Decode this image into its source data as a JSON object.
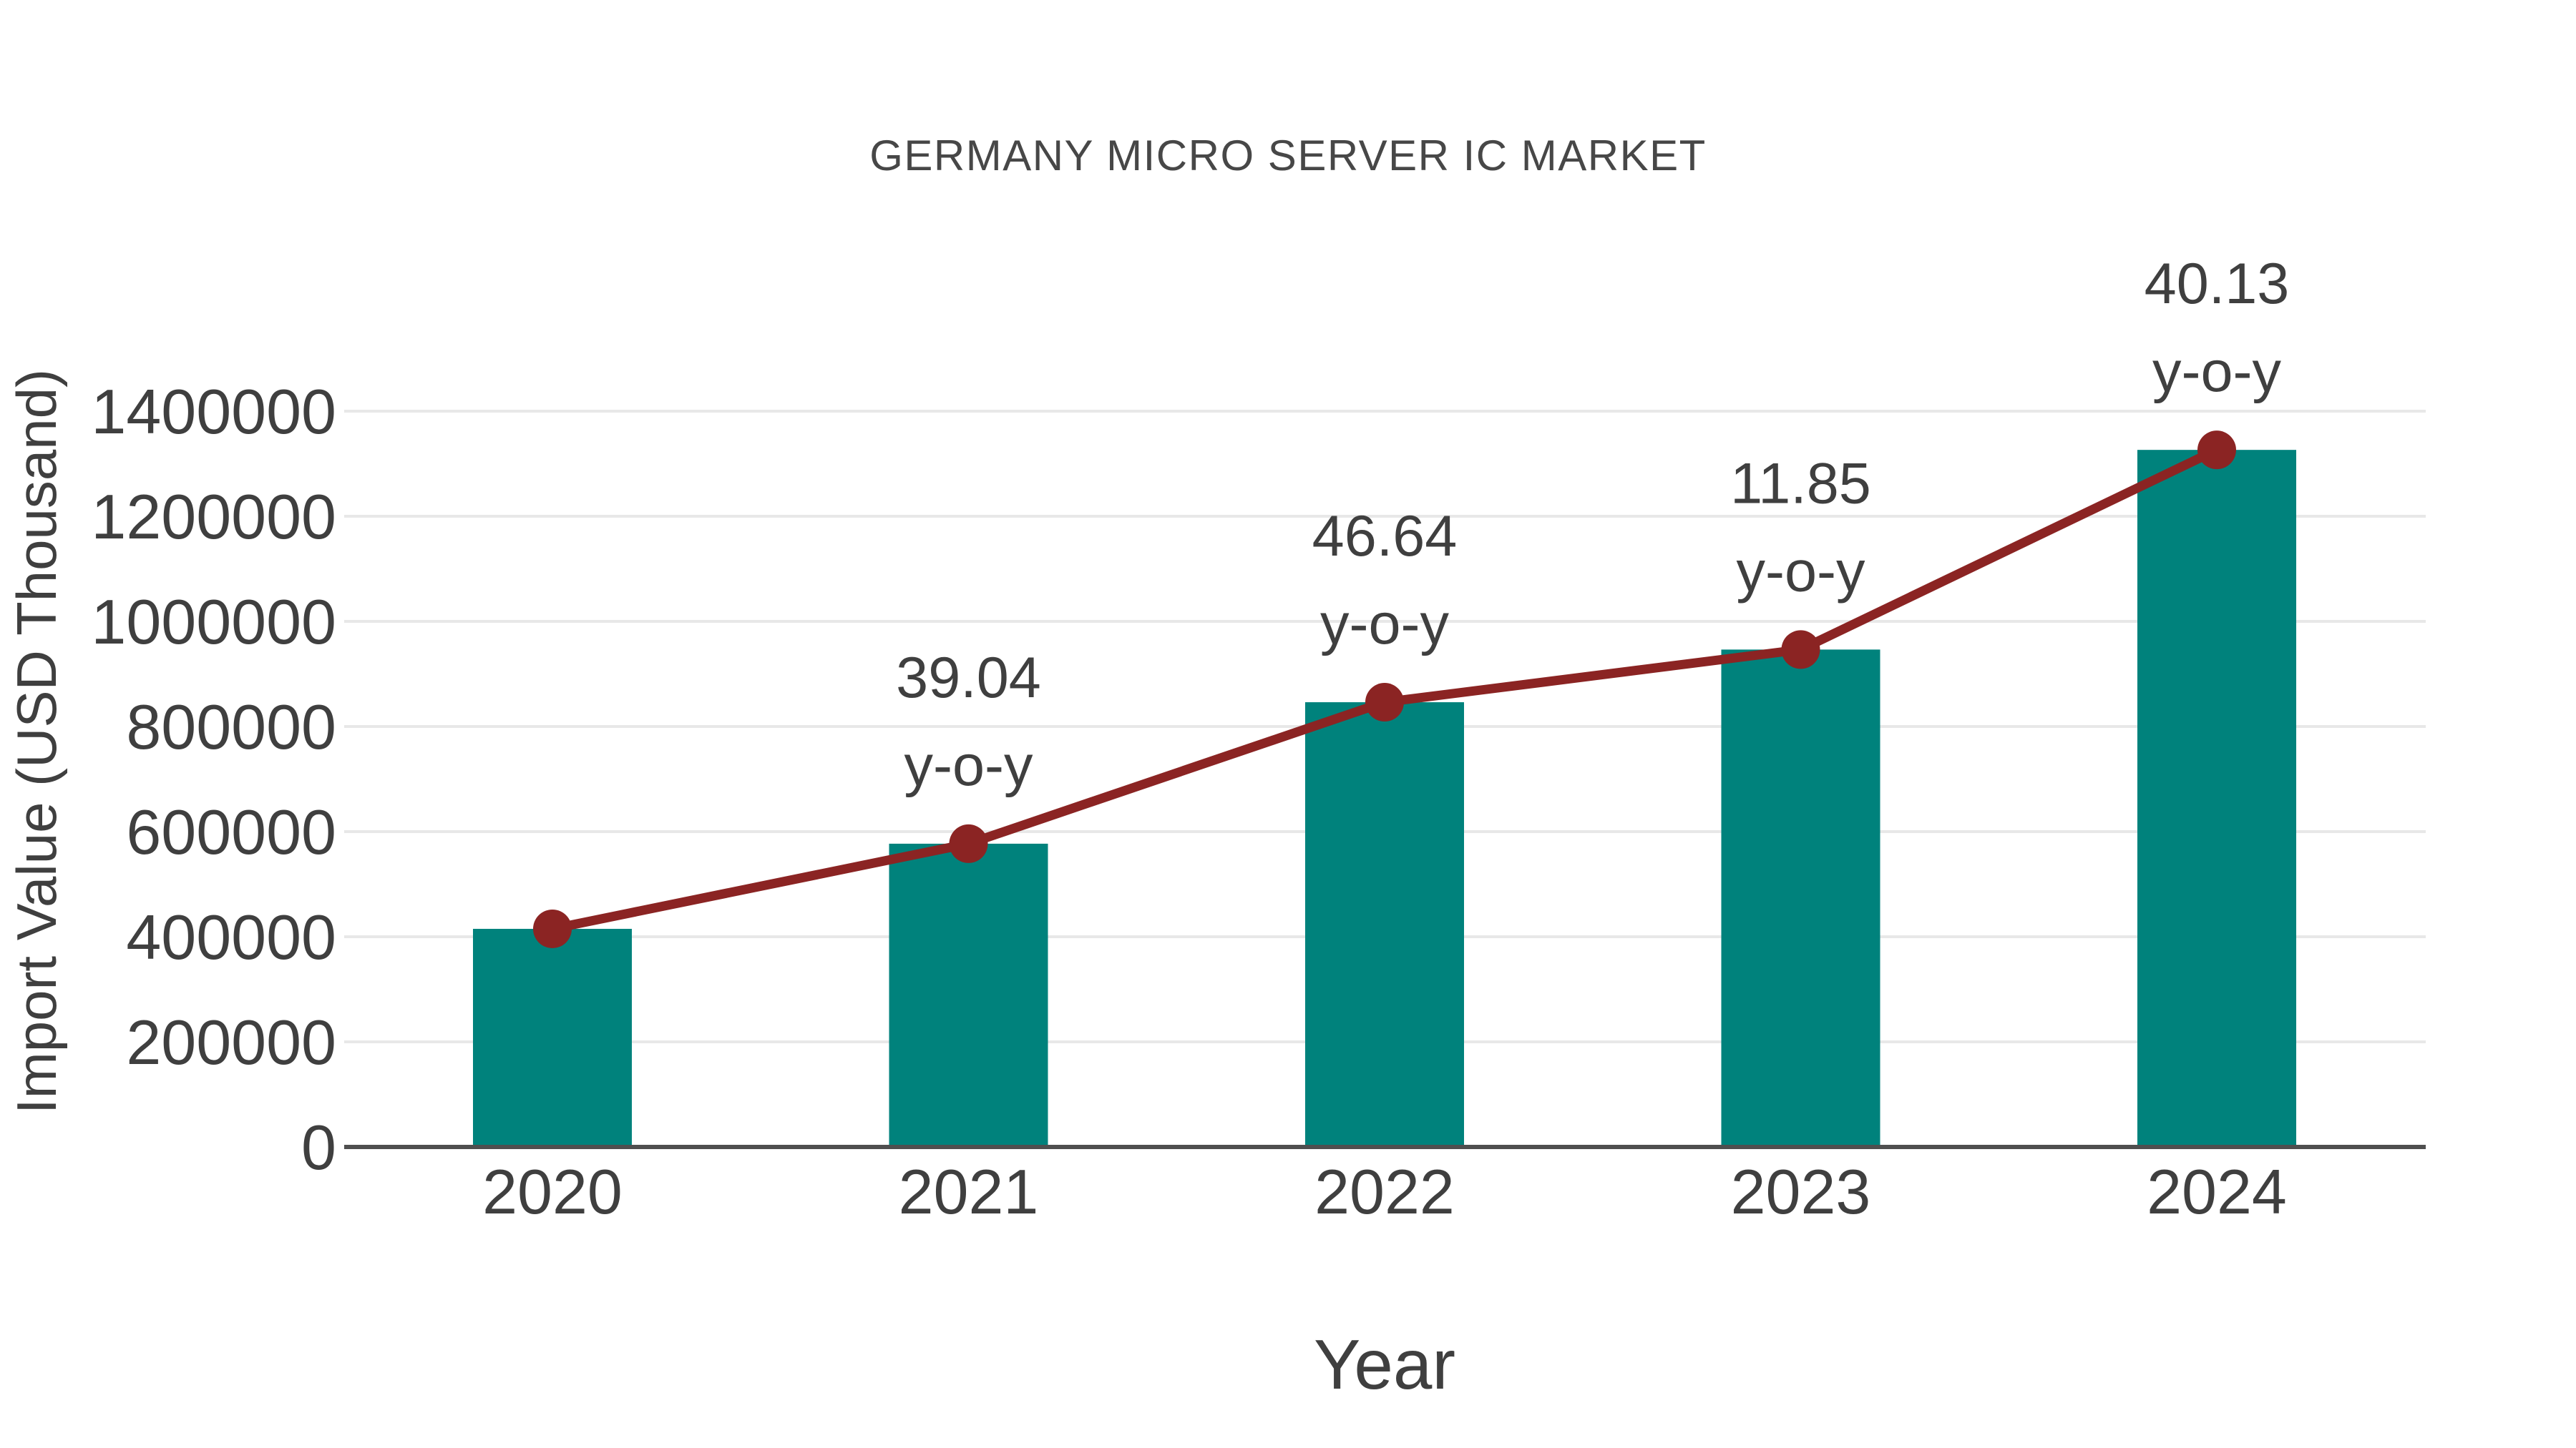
{
  "page": {
    "background": "#ffffff"
  },
  "chart_data": {
    "type": "bar",
    "subtype": "bar-with-line-overlay",
    "title": "GERMANY MICRO SERVER IC MARKET",
    "xlabel": "Year",
    "ylabel": "Import Value (USD Thousand)",
    "categories": [
      "2020",
      "2021",
      "2022",
      "2023",
      "2024"
    ],
    "series": [
      {
        "name": "Import Value bars",
        "type": "bar",
        "color": "#00827C",
        "values": [
          415000,
          577000,
          846200,
          946400,
          1326300
        ]
      },
      {
        "name": "Trend line",
        "type": "line",
        "color": "#8B2423",
        "values": [
          415000,
          577000,
          846200,
          946400,
          1326300
        ]
      }
    ],
    "point_labels": [
      "",
      "39.04",
      "46.64",
      "11.85",
      "40.13"
    ],
    "point_label_suffix": "y-o-y",
    "yticks": [
      0,
      200000,
      400000,
      600000,
      800000,
      1000000,
      1200000,
      1400000
    ],
    "ylim": [
      0,
      1400000
    ],
    "grid": "horizontal",
    "legend": "none",
    "colors": {
      "bar": "#00827C",
      "line": "#8B2423",
      "marker": "#8B2423",
      "gridline": "#E8E8E8",
      "axis_line": "#4F4F4F",
      "tick_text": "#3F3F3F",
      "title_text": "#474747"
    }
  }
}
